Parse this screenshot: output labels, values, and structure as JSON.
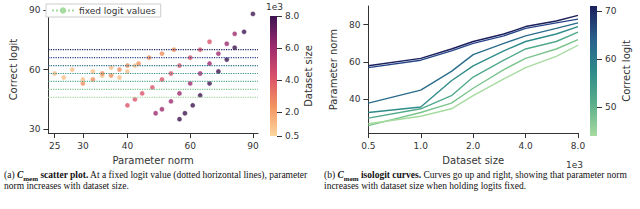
{
  "chart_data": [
    {
      "type": "scatter",
      "xlabel": "Parameter norm",
      "ylabel": "Correct logit",
      "log": "x",
      "xlim": [
        24,
        93
      ],
      "xticks": [
        25,
        30,
        40,
        60,
        90
      ],
      "ylim": [
        28,
        92
      ],
      "yticks": [
        30,
        60,
        90
      ],
      "grid": false,
      "legend": "upper left",
      "fixed_logit_values": {
        "name": "fixed logit values",
        "line_style": "dotted",
        "values": [
          46,
          50,
          54,
          58,
          62,
          66,
          70
        ],
        "colors": [
          "#a6dba0",
          "#7cc48e",
          "#52a98a",
          "#2f8c8a",
          "#2a6d8c",
          "#27468a",
          "#1b1f5c"
        ]
      },
      "series": [
        {
          "dataset_size": 0.5,
          "color": "#f7c08a",
          "x": [
            25,
            26.5,
            28,
            30,
            32,
            34,
            36,
            38,
            40,
            42
          ],
          "values": [
            58,
            56,
            60,
            55,
            59,
            57,
            61,
            56,
            59,
            62
          ]
        },
        {
          "dataset_size": 1.0,
          "color": "#f0905e",
          "x": [
            30,
            32,
            34,
            36,
            38,
            40,
            43,
            46,
            50,
            54
          ],
          "values": [
            53,
            55,
            58,
            57,
            60,
            62,
            63,
            66,
            68,
            70
          ]
        },
        {
          "dataset_size": 2.0,
          "color": "#d9546a",
          "x": [
            40,
            42,
            44,
            47,
            50,
            53,
            56,
            60,
            64,
            68
          ],
          "values": [
            42,
            45,
            48,
            51,
            55,
            58,
            62,
            66,
            70,
            74
          ]
        },
        {
          "dataset_size": 4.0,
          "color": "#9c2b6e",
          "x": [
            48,
            50,
            53,
            56,
            60,
            64,
            68,
            72,
            76,
            80
          ],
          "values": [
            38,
            40,
            44,
            48,
            53,
            58,
            63,
            68,
            73,
            78
          ]
        },
        {
          "dataset_size": 8.0,
          "color": "#3d1450",
          "x": [
            56,
            58,
            61,
            64,
            68,
            72,
            76,
            80,
            85,
            90
          ],
          "values": [
            35,
            38,
            42,
            47,
            53,
            59,
            65,
            71,
            79,
            88
          ]
        }
      ],
      "colorbar": {
        "label": "Dataset size",
        "multiplier_label": "1e3",
        "range": [
          0.5,
          8.0
        ],
        "ticks": [
          {
            "value": 0.5,
            "label": "0.5"
          },
          {
            "value": 2,
            "label": "2.0"
          },
          {
            "value": 4,
            "label": "4.0"
          },
          {
            "value": 6,
            "label": "6.0"
          },
          {
            "value": 8,
            "label": "8.0"
          }
        ],
        "colors": [
          "#fbd7a0",
          "#f3935f",
          "#d8506a",
          "#9a2a6e",
          "#3d1450"
        ]
      },
      "caption": {
        "label": "(a)",
        "symbol": "C",
        "subscript": "mem",
        "bold": "scatter plot.",
        "text": "At a fixed logit value (dotted horizontal lines), parameter norm increases with dataset size."
      }
    },
    {
      "type": "line",
      "xlabel": "Dataset size",
      "ylabel": "Parameter norm",
      "x_multiplier_label": "1e3",
      "log": "x",
      "x": [
        0.5,
        1.0,
        1.5,
        2.0,
        3.0,
        4.0,
        6.0,
        8.0
      ],
      "xlim": [
        0.5,
        8.0
      ],
      "xticks": [
        {
          "value": 0.5,
          "label": "0.5"
        },
        {
          "value": 1,
          "label": "1.0"
        },
        {
          "value": 2,
          "label": "2.0"
        },
        {
          "value": 4,
          "label": "4.0"
        },
        {
          "value": 8,
          "label": "8.0"
        }
      ],
      "ylim": [
        22,
        90
      ],
      "yticks": [
        40,
        60,
        80
      ],
      "grid": false,
      "series": [
        {
          "correct_logit": 70,
          "color": "#1b1f5c",
          "values": [
            58,
            62,
            67,
            71,
            75,
            79,
            82,
            85
          ]
        },
        {
          "correct_logit": 66,
          "color": "#27468a",
          "values": [
            57,
            61,
            66,
            70,
            74,
            78,
            81,
            83
          ]
        },
        {
          "correct_logit": 62,
          "color": "#2a6d8c",
          "values": [
            38,
            45,
            55,
            64,
            70,
            74,
            78,
            81
          ]
        },
        {
          "correct_logit": 58,
          "color": "#2f8c8a",
          "values": [
            33,
            36,
            50,
            58,
            66,
            71,
            75,
            79
          ]
        },
        {
          "correct_logit": 54,
          "color": "#52a98a",
          "values": [
            30,
            35,
            42,
            52,
            61,
            67,
            71,
            76
          ]
        },
        {
          "correct_logit": 50,
          "color": "#7cc48e",
          "values": [
            26,
            33,
            38,
            46,
            56,
            62,
            67,
            72
          ]
        },
        {
          "correct_logit": 46,
          "color": "#a6dba0",
          "values": [
            27,
            31,
            35,
            42,
            51,
            57,
            63,
            69
          ]
        }
      ],
      "colorbar": {
        "label": "Correct logit",
        "range": [
          44,
          71
        ],
        "ticks": [
          50,
          60,
          70
        ],
        "colors": [
          "#a6dba0",
          "#5aae8a",
          "#2c8a8a",
          "#2a5f8c",
          "#1b1f5c"
        ]
      },
      "caption": {
        "label": "(b)",
        "symbol": "C",
        "subscript": "mem",
        "bold": "isologit curves.",
        "text": "Curves go up and right, showing that parameter norm increases with dataset size when holding logits fixed."
      }
    }
  ]
}
